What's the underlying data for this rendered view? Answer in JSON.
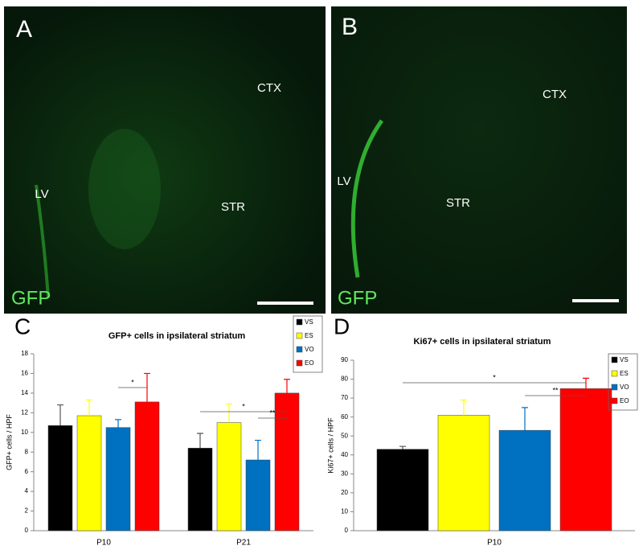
{
  "panels": [
    {
      "label": "A",
      "regions": [
        "CTX",
        "STR",
        "LV"
      ],
      "stain": "GFP"
    },
    {
      "label": "B",
      "regions": [
        "CTX",
        "STR",
        "LV"
      ],
      "stain": "GFP"
    }
  ],
  "chart_data": [
    {
      "type": "bar",
      "panel": "C",
      "title": "GFP+ cells in ipsilateral striatum",
      "y_label": "GFP+ cells / HPF",
      "categories": [
        "P10",
        "P21"
      ],
      "series": [
        {
          "name": "VS",
          "color": "#000000",
          "values": [
            10.7,
            8.4
          ],
          "errors": [
            2.1,
            1.5
          ]
        },
        {
          "name": "ES",
          "color": "#ffff00",
          "values": [
            11.7,
            11.0
          ],
          "errors": [
            1.6,
            1.9
          ]
        },
        {
          "name": "VO",
          "color": "#0070c0",
          "values": [
            10.5,
            7.2
          ],
          "errors": [
            0.8,
            2.0
          ]
        },
        {
          "name": "EO",
          "color": "#ff0000",
          "values": [
            13.1,
            14.0
          ],
          "errors": [
            2.9,
            1.4
          ]
        }
      ],
      "ylim": [
        0,
        18
      ],
      "yticks": [
        0,
        2,
        4,
        6,
        8,
        10,
        12,
        14,
        16,
        18
      ],
      "annotations": [
        "*",
        "*",
        "**"
      ]
    },
    {
      "type": "bar",
      "panel": "D",
      "title": "Ki67+ cells in ipsilateral striatum",
      "y_label": "Ki67+ cells / HPF",
      "categories": [
        "P10"
      ],
      "series": [
        {
          "name": "VS",
          "color": "#000000",
          "values": [
            43
          ],
          "errors": [
            1.5
          ]
        },
        {
          "name": "ES",
          "color": "#ffff00",
          "values": [
            61
          ],
          "errors": [
            8
          ]
        },
        {
          "name": "VO",
          "color": "#0070c0",
          "values": [
            53
          ],
          "errors": [
            12
          ]
        },
        {
          "name": "EO",
          "color": "#ff0000",
          "values": [
            75
          ],
          "errors": [
            5.5
          ]
        }
      ],
      "ylim": [
        0,
        90
      ],
      "yticks": [
        0,
        10,
        20,
        30,
        40,
        50,
        60,
        70,
        80,
        90
      ],
      "annotations": [
        "*",
        "**"
      ]
    }
  ]
}
